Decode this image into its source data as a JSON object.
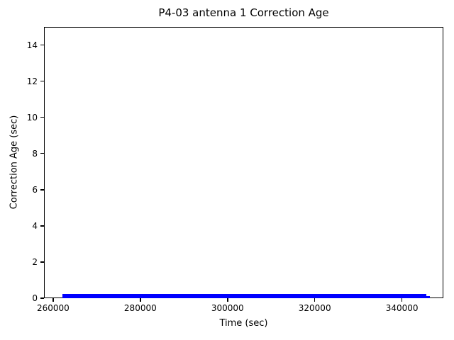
{
  "figure": {
    "background": "#ffffff",
    "axis_color": "#000000",
    "text_color": "#000000"
  },
  "chart_data": {
    "type": "line",
    "title": "P4-03 antenna 1 Correction Age",
    "xlabel": "Time (sec)",
    "ylabel": "Correction Age (sec)",
    "xlim": [
      257900,
      349500
    ],
    "ylim": [
      0,
      15
    ],
    "xticks": [
      260000,
      280000,
      300000,
      320000,
      340000
    ],
    "yticks": [
      0,
      2,
      4,
      6,
      8,
      10,
      12,
      14
    ],
    "grid": false,
    "legend": null,
    "line_color": "#0000ff",
    "series": [
      {
        "name": "Correction Age",
        "color": "#0000ff",
        "x_start": 262100,
        "x_end": 346400,
        "y_min": 0.0,
        "y_max": 0.2,
        "points": [
          [
            262100,
            0.1
          ],
          [
            345600,
            0.1
          ],
          [
            346400,
            0.05
          ]
        ],
        "description": "Correction age stays between 0 and ~0.2 sec across the entire time span, rendered as a thick blue band just above the x-axis."
      }
    ],
    "band_segments": [
      {
        "x0": 262100,
        "x1": 345600,
        "y_low": 0.0,
        "y_high": 0.22
      },
      {
        "x0": 345600,
        "x1": 346400,
        "y_low": 0.0,
        "y_high": 0.1
      }
    ]
  }
}
